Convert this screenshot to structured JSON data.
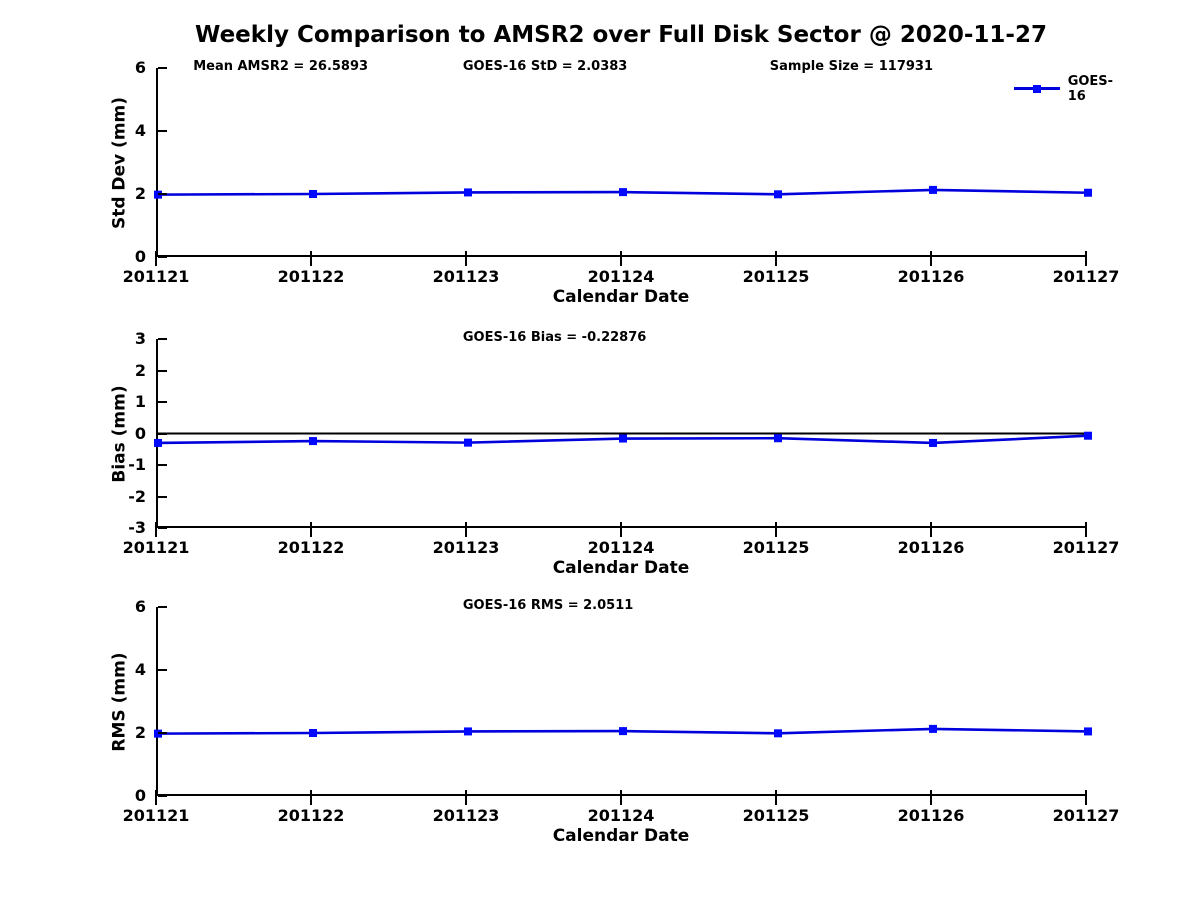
{
  "title": "Weekly Comparison to AMSR2 over Full Disk Sector @ 2020-11-27",
  "legend": {
    "label": "GOES-16",
    "position": "top-right"
  },
  "colors": {
    "line": "#0000DC",
    "marker": "#0008FF",
    "axis": "#000000",
    "zero_line": "#000000",
    "background": "#FFFFFF",
    "text": "#000000"
  },
  "chart_data": [
    {
      "type": "line",
      "categories": [
        "201121",
        "201122",
        "201123",
        "201124",
        "201125",
        "201126",
        "201127"
      ],
      "series": [
        {
          "name": "GOES-16",
          "values": [
            1.98,
            2.0,
            2.05,
            2.06,
            1.99,
            2.13,
            2.04
          ]
        }
      ],
      "xlabel": "Calendar Date",
      "ylabel": "Std Dev (mm)",
      "ylim": [
        0,
        6
      ],
      "yticks": [
        0,
        2,
        4,
        6
      ],
      "grid": false,
      "zero_line": false,
      "legend_position": "top-right",
      "annotations": [
        {
          "text": "Mean AMSR2 = 26.5893",
          "x": 0.04
        },
        {
          "text": "GOES-16 StD = 2.0383",
          "x": 0.33
        },
        {
          "text": "Sample Size = 117931",
          "x": 0.66
        }
      ]
    },
    {
      "type": "line",
      "categories": [
        "201121",
        "201122",
        "201123",
        "201124",
        "201125",
        "201126",
        "201127"
      ],
      "series": [
        {
          "name": "GOES-16",
          "values": [
            -0.3,
            -0.24,
            -0.29,
            -0.16,
            -0.15,
            -0.3,
            -0.07
          ]
        }
      ],
      "xlabel": "Calendar Date",
      "ylabel": "Bias (mm)",
      "ylim": [
        -3,
        3
      ],
      "yticks": [
        3,
        2,
        1,
        0,
        -1,
        -2,
        -3
      ],
      "grid": false,
      "zero_line": true,
      "legend_position": "none",
      "annotations": [
        {
          "text": "GOES-16 Bias  = -0.22876",
          "x": 0.33
        }
      ]
    },
    {
      "type": "line",
      "categories": [
        "201121",
        "201122",
        "201123",
        "201124",
        "201125",
        "201126",
        "201127"
      ],
      "series": [
        {
          "name": "GOES-16",
          "values": [
            1.98,
            2.0,
            2.05,
            2.06,
            1.99,
            2.13,
            2.05
          ]
        }
      ],
      "xlabel": "Calendar Date",
      "ylabel": "RMS (mm)",
      "ylim": [
        0,
        6
      ],
      "yticks": [
        0,
        2,
        4,
        6
      ],
      "grid": false,
      "zero_line": false,
      "legend_position": "none",
      "annotations": [
        {
          "text": "GOES-16 RMS = 2.0511",
          "x": 0.33
        }
      ]
    }
  ]
}
